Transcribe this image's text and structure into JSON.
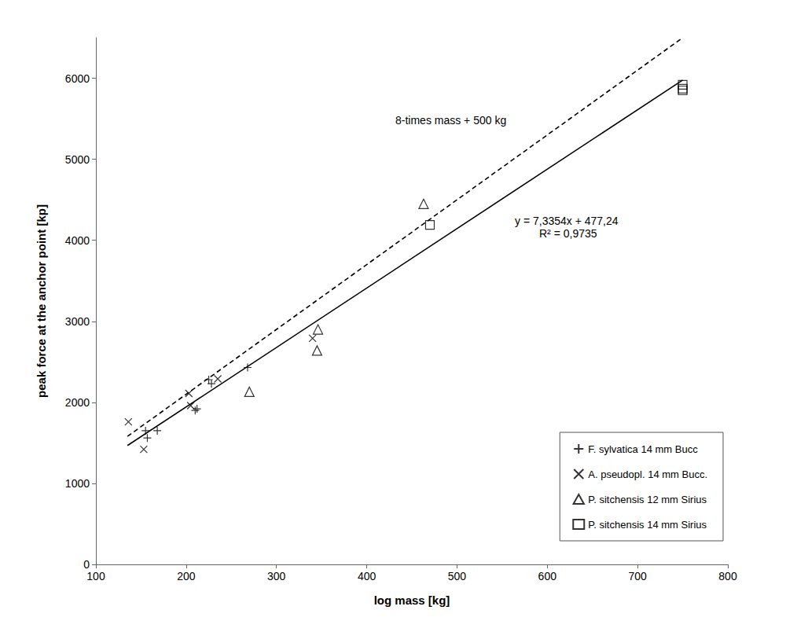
{
  "chart_data": {
    "type": "scatter",
    "x_label": "log mass [kg]",
    "y_label": "peak force at the anchor point [kp]",
    "xlim": [
      100,
      800
    ],
    "xticks": [
      100,
      200,
      300,
      400,
      500,
      600,
      700,
      800
    ],
    "ylim": [
      0,
      6500
    ],
    "yticks": [
      0,
      1000,
      2000,
      3000,
      4000,
      5000,
      6000
    ],
    "grid": false,
    "legend": "bottom-right",
    "annotations": [
      "8-times mass + 500 kg",
      "y = 7,3354x + 477,24",
      "R² = 0,9735"
    ],
    "series": [
      {
        "name": "F. sylvatica 14 mm Bucc",
        "type": "scatter",
        "marker": "plus",
        "color": "#000000",
        "x": [
          155,
          157,
          168,
          210,
          212,
          225,
          228,
          268
        ],
        "values": [
          1650,
          1560,
          1650,
          1900,
          1920,
          2280,
          2230,
          2430
        ]
      },
      {
        "name": "A. pseudopl. 14 mm Bucc.",
        "type": "scatter",
        "marker": "cross",
        "color": "#000000",
        "x": [
          136,
          153,
          203,
          205,
          235,
          340
        ],
        "values": [
          1760,
          1420,
          2110,
          1960,
          2290,
          2790
        ]
      },
      {
        "name": "P. sitchensis 12 mm Sirius",
        "type": "scatter",
        "marker": "triangle",
        "color": "#000000",
        "x": [
          270,
          345,
          346,
          463
        ],
        "values": [
          2130,
          2640,
          2900,
          4450
        ]
      },
      {
        "name": "P. sitchensis 14 mm Sirius",
        "type": "scatter",
        "marker": "square",
        "color": "#000000",
        "x": [
          470,
          750,
          750,
          750
        ],
        "values": [
          4190,
          5920,
          5870,
          5850
        ]
      },
      {
        "type": "line",
        "line_style": "solid",
        "color": "#000000",
        "x": [
          135,
          750
        ],
        "values": [
          1467,
          5978
        ]
      },
      {
        "type": "line",
        "line_style": "dashed",
        "color": "#000000",
        "x": [
          135,
          750
        ],
        "values": [
          1580,
          6500
        ]
      }
    ]
  }
}
